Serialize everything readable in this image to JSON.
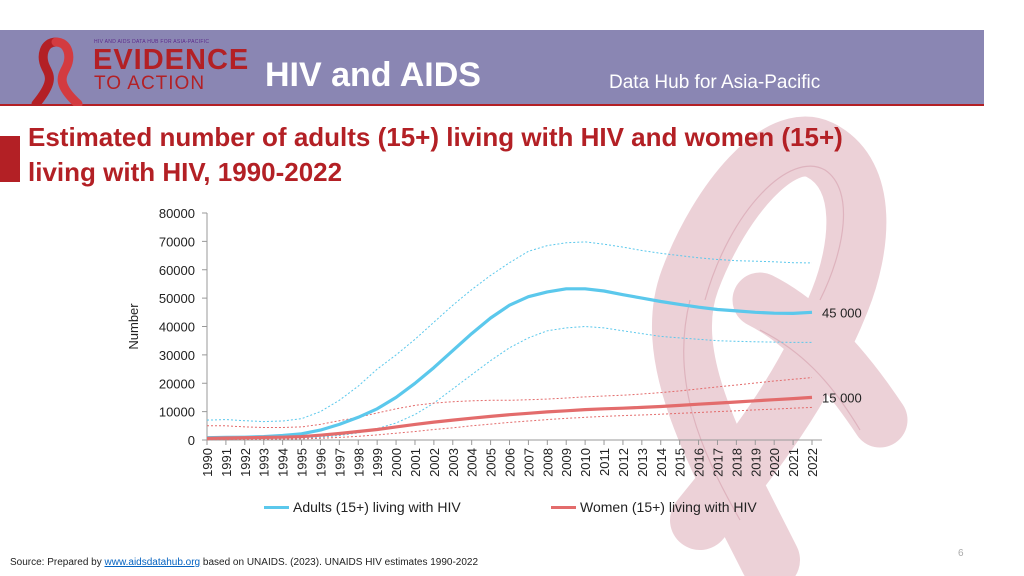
{
  "header": {
    "logo_org": "HIV AND AIDS DATA HUB FOR ASIA-PACIFIC",
    "logo_word1": "EVIDENCE",
    "logo_word2": "TO ACTION",
    "title": "HIV and AIDS",
    "subtitle": "Data Hub for Asia-Pacific"
  },
  "slide_title": "Estimated number of adults (15+) living with HIV and women (15+) living with HIV, 1990-2022",
  "source": {
    "prefix": "Source: Prepared by",
    "link": "www.aidsdatahub.org",
    "suffix": "based on UNAIDS. (2023). UNAIDS HIV estimates 1990-2022"
  },
  "page_number": "6",
  "colors": {
    "banner": "#8a86b3",
    "accent": "#b32025",
    "adults": "#5bc8ec",
    "women": "#e36c6c"
  },
  "chart_data": {
    "type": "line",
    "title": "",
    "xlabel": "",
    "ylabel": "Number",
    "ylim": [
      0,
      80000
    ],
    "yticks": [
      0,
      10000,
      20000,
      30000,
      40000,
      50000,
      60000,
      70000,
      80000
    ],
    "grid": false,
    "legend_position": "bottom",
    "x": [
      "1990",
      "1991",
      "1992",
      "1993",
      "1994",
      "1995",
      "1996",
      "1997",
      "1998",
      "1999",
      "2000",
      "2001",
      "2002",
      "2003",
      "2004",
      "2005",
      "2006",
      "2007",
      "2008",
      "2009",
      "2010",
      "2011",
      "2012",
      "2013",
      "2014",
      "2015",
      "2016",
      "2017",
      "2018",
      "2019",
      "2020",
      "2021",
      "2022"
    ],
    "series": [
      {
        "name": "Adults  (15+) living with HIV",
        "color": "#5bc8ec",
        "values": [
          800,
          900,
          1000,
          1200,
          1600,
          2200,
          3500,
          5500,
          8000,
          11000,
          15000,
          20000,
          25500,
          31500,
          37500,
          43000,
          47500,
          50500,
          52200,
          53300,
          53300,
          52500,
          51200,
          50000,
          48800,
          47800,
          46800,
          46000,
          45500,
          45000,
          44700,
          44600,
          45000
        ],
        "upper": [
          7000,
          7200,
          6800,
          6500,
          6700,
          7500,
          10000,
          14000,
          19000,
          25000,
          30000,
          35500,
          41500,
          47500,
          53000,
          58000,
          62500,
          66500,
          68500,
          69500,
          69800,
          69000,
          68000,
          66800,
          65800,
          65000,
          64200,
          63600,
          63200,
          63000,
          62800,
          62500,
          62400
        ],
        "lower": [
          200,
          250,
          300,
          400,
          500,
          700,
          1000,
          1600,
          2500,
          4000,
          6000,
          9000,
          13000,
          18000,
          23000,
          28000,
          32500,
          36000,
          38500,
          39500,
          40000,
          39500,
          38500,
          37500,
          36500,
          36000,
          35500,
          35000,
          34800,
          34600,
          34500,
          34400,
          34400
        ],
        "end_label": "45 000"
      },
      {
        "name": "Women  (15+) living with HIV",
        "color": "#e36c6c",
        "values": [
          600,
          700,
          800,
          900,
          1000,
          1200,
          1700,
          2300,
          3000,
          3700,
          4600,
          5500,
          6300,
          7000,
          7700,
          8300,
          8900,
          9400,
          9900,
          10300,
          10700,
          11000,
          11200,
          11500,
          11800,
          12200,
          12600,
          13000,
          13400,
          13800,
          14200,
          14600,
          15000
        ],
        "upper": [
          5000,
          5000,
          4600,
          4400,
          4400,
          4600,
          5500,
          6800,
          8000,
          9500,
          11000,
          12200,
          13000,
          13500,
          13800,
          14000,
          14000,
          14200,
          14400,
          14800,
          15200,
          15500,
          15800,
          16200,
          16700,
          17300,
          18000,
          18700,
          19400,
          20100,
          20800,
          21400,
          22000
        ],
        "lower": [
          100,
          150,
          200,
          250,
          300,
          400,
          600,
          900,
          1300,
          1800,
          2400,
          3000,
          3700,
          4300,
          5000,
          5600,
          6200,
          6700,
          7200,
          7600,
          8000,
          8300,
          8600,
          8800,
          9100,
          9400,
          9700,
          10000,
          10300,
          10600,
          10900,
          11200,
          11500
        ],
        "end_label": "15 000"
      }
    ]
  }
}
